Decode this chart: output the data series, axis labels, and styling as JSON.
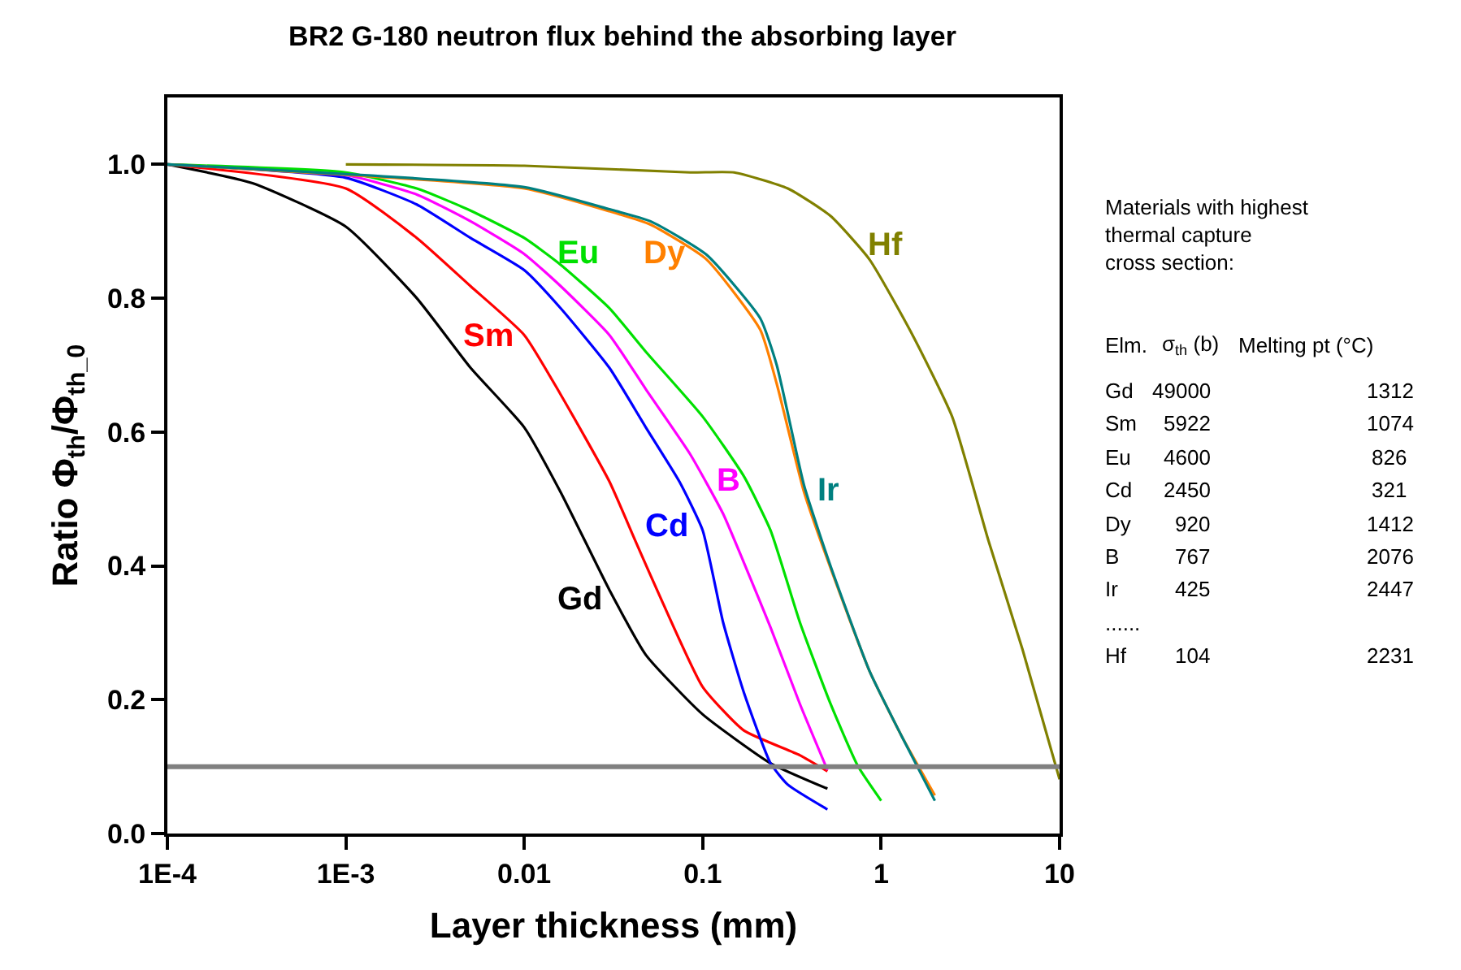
{
  "chart_data": {
    "type": "line",
    "title": "BR2 G-180 neutron flux behind the absorbing layer",
    "xlabel": "Layer thickness (mm)",
    "ylabel": "Ratio Φ$_{th}$/Φ$_{th_0}$",
    "log": "x",
    "xlim": [
      0.0001,
      10
    ],
    "ylim": [
      0,
      1.1
    ],
    "xticks": [
      {
        "value": 0.0001,
        "label": "1E-4"
      },
      {
        "value": 0.001,
        "label": "1E-3"
      },
      0.01,
      0.1,
      1,
      10
    ],
    "yticks": [
      {
        "value": 0,
        "label": "0.0"
      },
      0.2,
      0.4,
      0.6,
      0.8,
      {
        "value": 1,
        "label": "1.0"
      }
    ],
    "ref_lines": [
      {
        "axis": "y",
        "value": 0.1,
        "color": "#808080"
      }
    ],
    "series": [
      {
        "name": "Gd",
        "color": "#000000",
        "x": [
          0.0001,
          0.0003,
          0.001,
          0.0025,
          0.005,
          0.01,
          0.016,
          0.03,
          0.048,
          0.1,
          0.24,
          0.5
        ],
        "values": [
          1.0,
          0.972,
          0.907,
          0.8,
          0.696,
          0.607,
          0.51,
          0.364,
          0.267,
          0.178,
          0.105,
          0.067
        ]
      },
      {
        "name": "Sm",
        "color": "#ff0000",
        "x": [
          0.0001,
          0.001,
          0.0025,
          0.005,
          0.01,
          0.016,
          0.03,
          0.042,
          0.059,
          0.1,
          0.17,
          0.35,
          0.5
        ],
        "values": [
          1.0,
          0.964,
          0.89,
          0.818,
          0.745,
          0.656,
          0.526,
          0.437,
          0.348,
          0.219,
          0.154,
          0.117,
          0.093
        ]
      },
      {
        "name": "B",
        "color": "#ff00ff",
        "x": [
          0.0001,
          0.001,
          0.0025,
          0.005,
          0.01,
          0.016,
          0.03,
          0.048,
          0.085,
          0.13,
          0.17,
          0.24,
          0.35,
          0.5
        ],
        "values": [
          1.0,
          0.984,
          0.955,
          0.915,
          0.866,
          0.818,
          0.745,
          0.664,
          0.567,
          0.478,
          0.405,
          0.308,
          0.194,
          0.095
        ]
      },
      {
        "name": "Cd",
        "color": "#0000ff",
        "x": [
          0.0001,
          0.001,
          0.0025,
          0.005,
          0.01,
          0.016,
          0.03,
          0.048,
          0.074,
          0.1,
          0.13,
          0.17,
          0.24,
          0.3,
          0.5
        ],
        "values": [
          1.0,
          0.98,
          0.94,
          0.89,
          0.842,
          0.785,
          0.696,
          0.607,
          0.526,
          0.453,
          0.316,
          0.211,
          0.105,
          0.073,
          0.036
        ]
      },
      {
        "name": "Eu",
        "color": "#00e000",
        "x": [
          0.0001,
          0.001,
          0.0025,
          0.005,
          0.01,
          0.016,
          0.03,
          0.048,
          0.1,
          0.17,
          0.24,
          0.35,
          0.52,
          0.74,
          1
        ],
        "values": [
          1.0,
          0.988,
          0.964,
          0.931,
          0.89,
          0.85,
          0.785,
          0.72,
          0.623,
          0.534,
          0.453,
          0.316,
          0.194,
          0.101,
          0.049
        ]
      },
      {
        "name": "Dy",
        "color": "#ff8000",
        "x": [
          0.0001,
          0.01,
          0.03,
          0.051,
          0.105,
          0.21,
          0.26,
          0.37,
          0.52,
          0.86,
          1.3,
          2
        ],
        "values": [
          1.0,
          0.964,
          0.93,
          0.91,
          0.858,
          0.753,
          0.672,
          0.51,
          0.397,
          0.243,
          0.146,
          0.057
        ]
      },
      {
        "name": "Ir",
        "color": "#008080",
        "x": [
          0.0001,
          0.01,
          0.03,
          0.051,
          0.105,
          0.21,
          0.26,
          0.37,
          0.52,
          0.86,
          1.3,
          2
        ],
        "values": [
          1.0,
          0.966,
          0.933,
          0.915,
          0.865,
          0.77,
          0.7,
          0.52,
          0.4,
          0.243,
          0.146,
          0.049
        ]
      },
      {
        "name": "Hf",
        "color": "#808000",
        "x": [
          0.001,
          0.01,
          0.085,
          0.15,
          0.3,
          0.52,
          0.86,
          1.5,
          2.5,
          4,
          6.2,
          10
        ],
        "values": [
          1.0,
          0.998,
          0.988,
          0.988,
          0.964,
          0.923,
          0.858,
          0.745,
          0.623,
          0.437,
          0.275,
          0.081
        ]
      }
    ],
    "annotations": [
      "Materials with highest\nthermal capture\ncross section:",
      "Elm.\tσ$_{th}$ (b)\tMelting pt (°C)",
      "Gd\t49000\t1312",
      "Sm\t5922\t1074",
      "Eu\t4600\t826",
      "Cd\t2450\t321",
      "Dy\t920\t1412",
      "B\t767\t2076",
      "Ir\t425\t2447",
      "......",
      "Hf\t104\t2231"
    ]
  }
}
